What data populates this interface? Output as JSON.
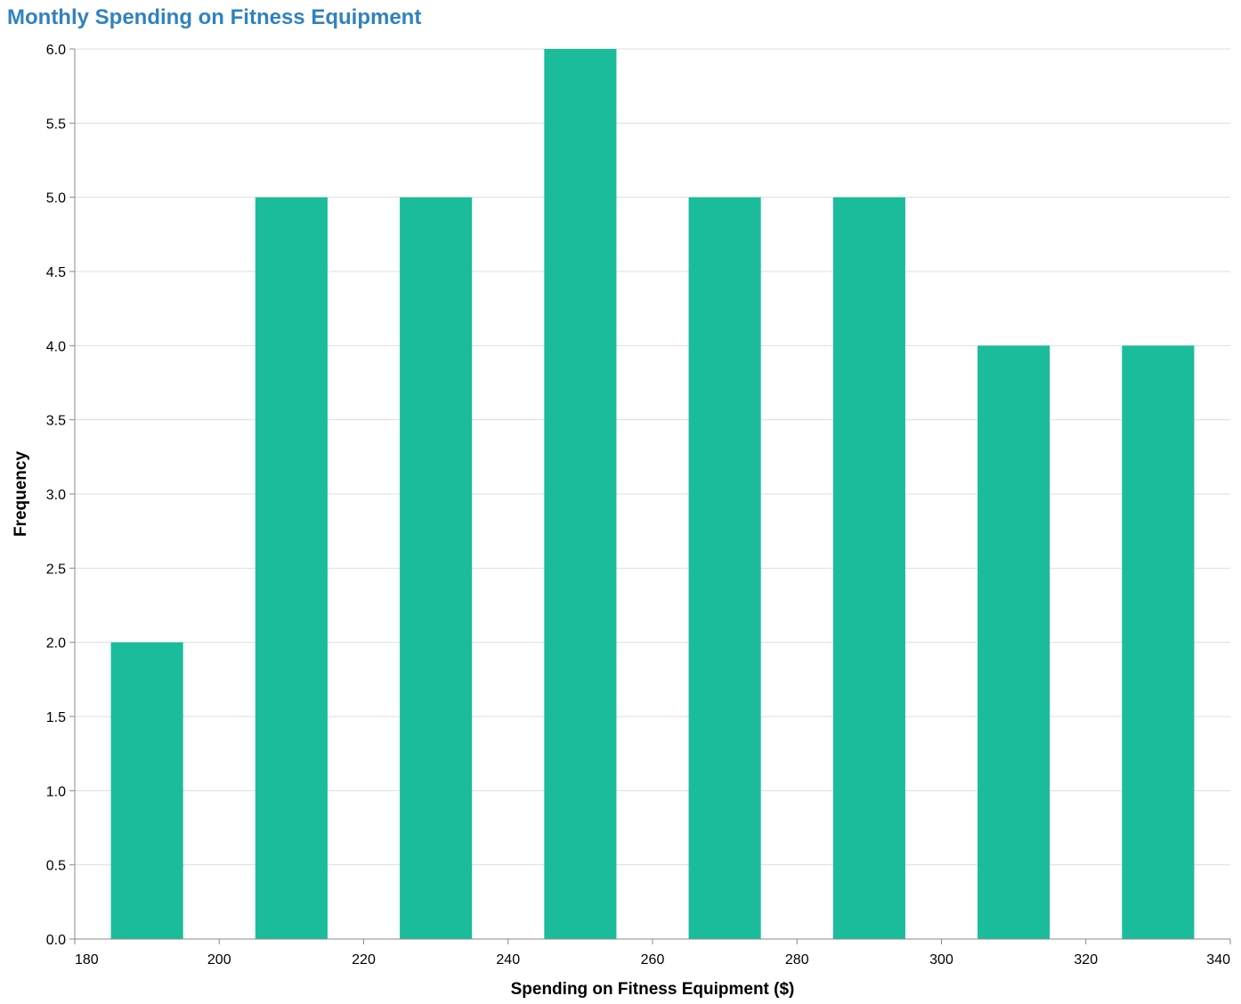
{
  "chart_data": {
    "type": "bar",
    "title": "Monthly Spending on Fitness Equipment",
    "xlabel": "Spending on Fitness Equipment ($)",
    "ylabel": "Frequency",
    "x_ticks": [
      180,
      200,
      220,
      240,
      260,
      280,
      300,
      320,
      340
    ],
    "y_ticks": [
      0.0,
      0.5,
      1.0,
      1.5,
      2.0,
      2.5,
      3.0,
      3.5,
      4.0,
      4.5,
      5.0,
      5.5,
      6.0
    ],
    "xlim": [
      180,
      340
    ],
    "ylim": [
      0,
      6
    ],
    "grid": true,
    "bins": [
      {
        "x0": 185,
        "x1": 195,
        "value": 2
      },
      {
        "x0": 205,
        "x1": 215,
        "value": 5
      },
      {
        "x0": 225,
        "x1": 235,
        "value": 5
      },
      {
        "x0": 245,
        "x1": 255,
        "value": 6
      },
      {
        "x0": 265,
        "x1": 275,
        "value": 5
      },
      {
        "x0": 285,
        "x1": 295,
        "value": 5
      },
      {
        "x0": 305,
        "x1": 315,
        "value": 4
      },
      {
        "x0": 325,
        "x1": 335,
        "value": 4
      }
    ],
    "colors": {
      "bar": "#1abc9c",
      "title": "#3182bd",
      "grid": "#dddddd",
      "axis": "#888888"
    }
  }
}
